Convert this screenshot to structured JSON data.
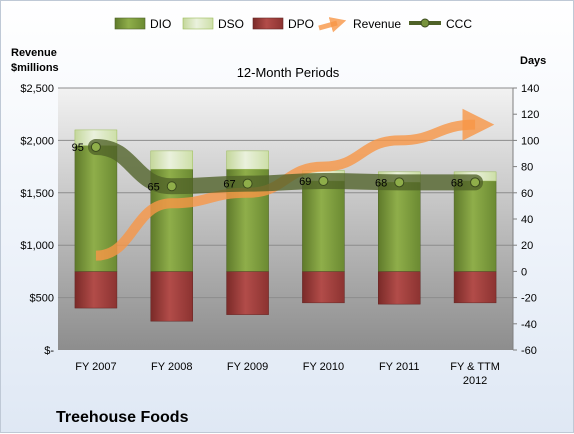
{
  "company": "Treehouse Foods",
  "chart_data": {
    "type": "bar",
    "title": "12-Month Periods",
    "ylabel_left": "Revenue $millions",
    "ylabel_right": "Days",
    "categories": [
      "FY 2007",
      "FY 2008",
      "FY 2009",
      "FY 2010",
      "FY 2011",
      "FY & TTM 2012"
    ],
    "left_axis": {
      "min": 0,
      "max": 2500,
      "step": 500,
      "tick_labels": [
        "$-",
        "$500",
        "$1,000",
        "$1,500",
        "$2,000",
        "$2,500"
      ]
    },
    "right_axis": {
      "min": -60,
      "max": 140,
      "step": 20,
      "tick_labels": [
        "-60",
        "-40",
        "-20",
        "0",
        "20",
        "40",
        "60",
        "80",
        "100",
        "120",
        "140"
      ]
    },
    "series": [
      {
        "name": "DIO",
        "kind": "stacked-bar",
        "axis": "right",
        "color": "#77933c",
        "values": [
          96,
          78,
          78,
          69,
          68,
          69
        ]
      },
      {
        "name": "DSO",
        "kind": "stacked-bar",
        "axis": "right",
        "color": "#d7e4bd",
        "values": [
          12,
          14,
          14,
          8,
          8,
          7
        ]
      },
      {
        "name": "DPO",
        "kind": "negative-bar",
        "axis": "right",
        "color": "#953735",
        "values": [
          -28,
          -38,
          -33,
          -24,
          -25,
          -24
        ]
      },
      {
        "name": "Revenue",
        "kind": "trend-arrow",
        "axis": "left",
        "color": "#f79646",
        "values": [
          900,
          1400,
          1500,
          1750,
          2000,
          2150
        ]
      },
      {
        "name": "CCC",
        "kind": "line",
        "axis": "right",
        "color": "#4f6228",
        "values": [
          95,
          65,
          67,
          69,
          68,
          68
        ]
      }
    ],
    "grid": true,
    "legend": "top"
  }
}
